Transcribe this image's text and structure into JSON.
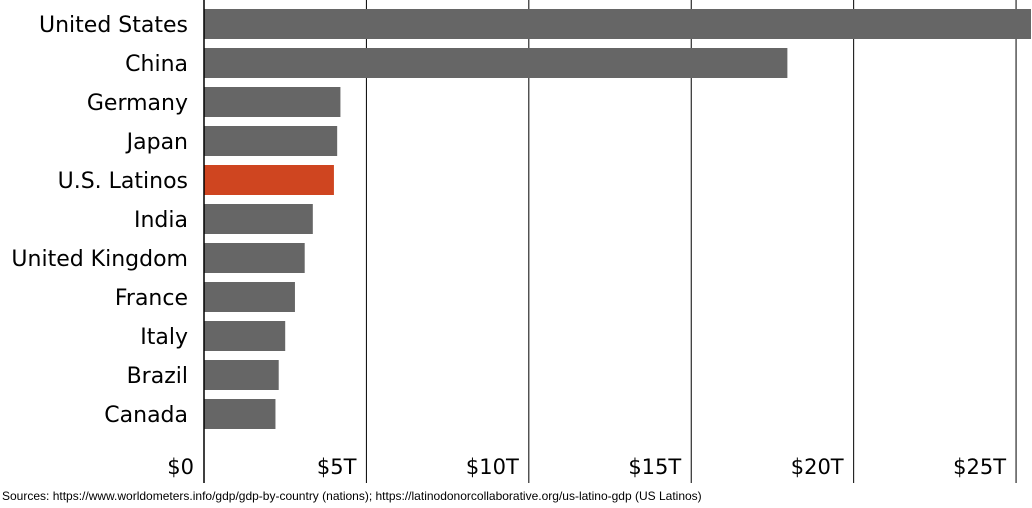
{
  "chart_data": {
    "type": "bar",
    "orientation": "horizontal",
    "categories": [
      "United States",
      "China",
      "Germany",
      "Japan",
      "U.S. Latinos",
      "India",
      "United Kingdom",
      "France",
      "Italy",
      "Brazil",
      "Canada"
    ],
    "values": [
      25.46,
      17.96,
      4.2,
      4.1,
      4.0,
      3.35,
      3.1,
      2.8,
      2.5,
      2.3,
      2.2
    ],
    "highlight_category": "U.S. Latinos",
    "bar_color": "#666666",
    "highlight_color": "#cf4520",
    "xlim": [
      0,
      25.46
    ],
    "x_ticks": [
      {
        "value": 0,
        "label": "$0"
      },
      {
        "value": 5,
        "label": "$5T"
      },
      {
        "value": 10,
        "label": "$10T"
      },
      {
        "value": 15,
        "label": "$15T"
      },
      {
        "value": 20,
        "label": "$20T"
      },
      {
        "value": 25,
        "label": "$25T"
      }
    ],
    "grid": true,
    "title": "",
    "xlabel": "",
    "ylabel": ""
  },
  "footer": {
    "sources": "Sources: https://www.worldometers.info/gdp/gdp-by-country (nations); https://latinodonorcollaborative.org/us-latino-gdp (US Latinos)"
  }
}
